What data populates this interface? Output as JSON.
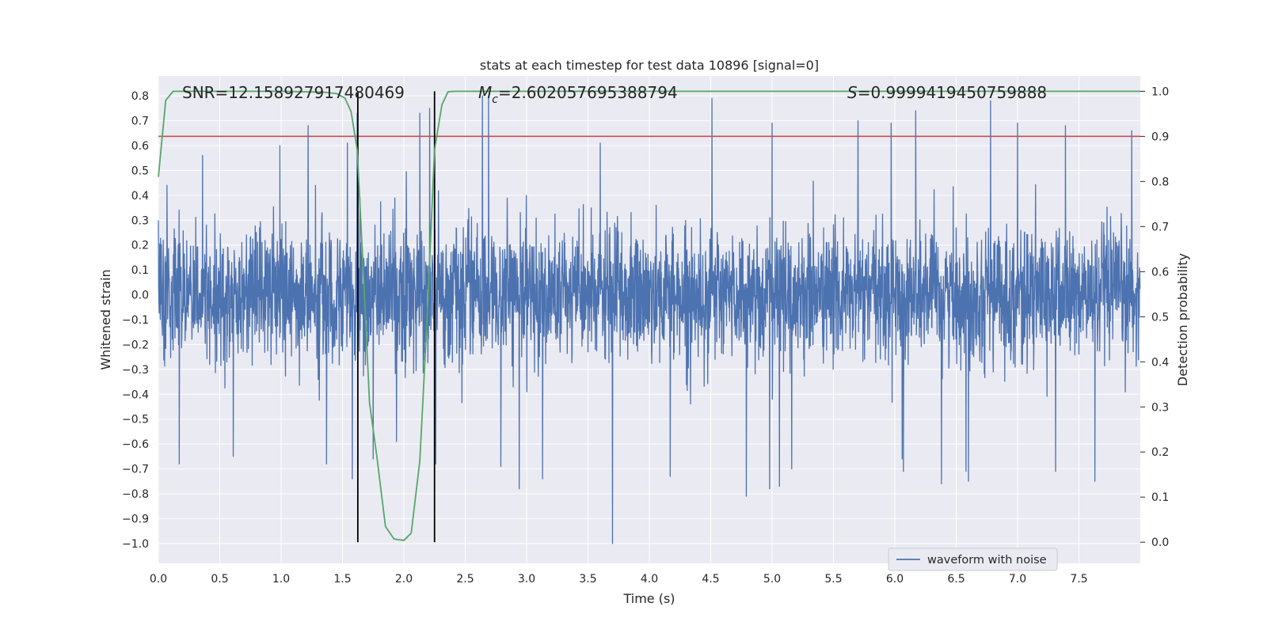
{
  "chart_data": {
    "type": "line",
    "title": "stats at each timestep for test data 10896 [signal=0]",
    "xlabel": "Time (s)",
    "ylabel_left": "Whitened strain",
    "ylabel_right": "Detection probability",
    "xlim": [
      0.0,
      8.0
    ],
    "ylim_left": [
      -1.08,
      0.88
    ],
    "ylim_right": [
      -0.047,
      1.034
    ],
    "grid": true,
    "legend_placement": "lower-right",
    "x_ticks": [
      "0.0",
      "0.5",
      "1.0",
      "1.5",
      "2.0",
      "2.5",
      "3.0",
      "3.5",
      "4.0",
      "4.5",
      "5.0",
      "5.5",
      "6.0",
      "6.5",
      "7.0",
      "7.5"
    ],
    "y_ticks_left": [
      "0.8",
      "0.7",
      "0.6",
      "0.5",
      "0.4",
      "0.3",
      "0.2",
      "0.1",
      "0.0",
      "-0.1",
      "-0.2",
      "-0.3",
      "-0.4",
      "-0.5",
      "-0.6",
      "-0.7",
      "-0.8",
      "-0.9",
      "-1.0"
    ],
    "y_ticks_right": [
      "1.0",
      "0.9",
      "0.8",
      "0.7",
      "0.6",
      "0.5",
      "0.4",
      "0.3",
      "0.2",
      "0.1",
      "0.0"
    ],
    "annotations": {
      "snr": "SNR=12.158927917480469",
      "mc_symbol": "M",
      "mc_sub": "c",
      "mc_value": "=2.602057695388794",
      "s_symbol": "S",
      "s_value": "=0.9999419450759888"
    },
    "series": [
      {
        "name": "waveform with noise",
        "axis": "left",
        "color": "#4c72b0",
        "note_envelope": "dense whitened strain noise over t in [0, 8) s",
        "peak_upper": [
          [
            0.07,
            0.44
          ],
          [
            0.36,
            0.56
          ],
          [
            0.99,
            0.6
          ],
          [
            1.22,
            0.68
          ],
          [
            1.54,
            0.61
          ],
          [
            1.62,
            0.73
          ],
          [
            2.13,
            0.73
          ],
          [
            2.21,
            0.75
          ],
          [
            2.64,
            0.8
          ],
          [
            2.69,
            0.8
          ],
          [
            3.6,
            0.61
          ],
          [
            4.51,
            0.79
          ],
          [
            5.0,
            0.69
          ],
          [
            5.7,
            0.7
          ],
          [
            5.97,
            0.69
          ],
          [
            6.07,
            0.73
          ],
          [
            6.17,
            0.74
          ],
          [
            6.78,
            0.78
          ],
          [
            7.0,
            0.69
          ],
          [
            7.39,
            0.68
          ],
          [
            7.93,
            0.66
          ]
        ],
        "peak_lower": [
          [
            0.17,
            -0.68
          ],
          [
            0.61,
            -0.65
          ],
          [
            1.37,
            -0.68
          ],
          [
            1.58,
            -0.74
          ],
          [
            1.75,
            -0.66
          ],
          [
            1.94,
            -0.59
          ],
          [
            2.26,
            -0.68
          ],
          [
            2.79,
            -0.69
          ],
          [
            2.94,
            -0.78
          ],
          [
            3.13,
            -0.74
          ],
          [
            3.7,
            -1.0
          ],
          [
            4.17,
            -0.73
          ],
          [
            4.79,
            -0.81
          ],
          [
            4.98,
            -0.78
          ],
          [
            5.06,
            -0.77
          ],
          [
            5.16,
            -0.7
          ],
          [
            6.06,
            -0.66
          ],
          [
            6.07,
            -0.71
          ],
          [
            6.38,
            -0.76
          ],
          [
            6.58,
            -0.71
          ],
          [
            6.6,
            -0.75
          ],
          [
            7.31,
            -0.71
          ],
          [
            7.63,
            -0.75
          ]
        ]
      },
      {
        "name": "",
        "axis": "right",
        "color": "#55a868",
        "x": [
          0.0,
          0.06,
          0.12,
          0.2,
          0.5,
          1.0,
          1.35,
          1.45,
          1.52,
          1.57,
          1.62,
          1.67,
          1.72,
          1.78,
          1.85,
          1.92,
          2.0,
          2.06,
          2.13,
          2.19,
          2.25,
          2.31,
          2.36,
          2.42,
          2.5,
          3.0,
          4.0,
          5.0,
          6.0,
          7.0,
          8.0
        ],
        "y": [
          0.81,
          0.98,
          1.0,
          1.0,
          1.0,
          1.0,
          0.998,
          0.995,
          0.985,
          0.955,
          0.87,
          0.6,
          0.31,
          0.19,
          0.035,
          0.007,
          0.004,
          0.02,
          0.18,
          0.5,
          0.87,
          0.97,
          0.999,
          1.0,
          1.0,
          1.0,
          1.0,
          1.0,
          1.0,
          1.0,
          1.0
        ]
      },
      {
        "name": "",
        "axis": "right",
        "color": "#c44e52",
        "y_constant": 0.9
      }
    ],
    "vertical_lines": [
      1.625,
      2.25
    ]
  }
}
